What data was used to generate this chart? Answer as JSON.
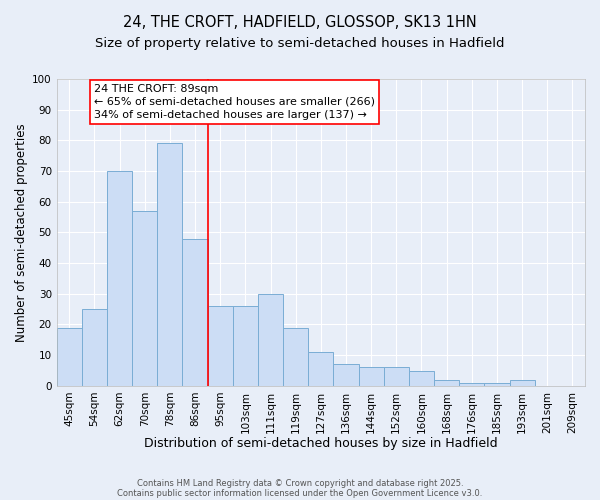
{
  "title1": "24, THE CROFT, HADFIELD, GLOSSOP, SK13 1HN",
  "title2": "Size of property relative to semi-detached houses in Hadfield",
  "xlabel": "Distribution of semi-detached houses by size in Hadfield",
  "ylabel": "Number of semi-detached properties",
  "categories": [
    "45sqm",
    "54sqm",
    "62sqm",
    "70sqm",
    "78sqm",
    "86sqm",
    "95sqm",
    "103sqm",
    "111sqm",
    "119sqm",
    "127sqm",
    "136sqm",
    "144sqm",
    "152sqm",
    "160sqm",
    "168sqm",
    "176sqm",
    "185sqm",
    "193sqm",
    "201sqm",
    "209sqm"
  ],
  "values": [
    19,
    25,
    70,
    57,
    79,
    48,
    26,
    26,
    30,
    19,
    11,
    7,
    6,
    6,
    5,
    2,
    1,
    1,
    2,
    0,
    0
  ],
  "bar_color": "#ccddf5",
  "bar_edge_color": "#7aadd4",
  "red_line_x": 5.5,
  "annotation_line1": "24 THE CROFT: 89sqm",
  "annotation_line2": "← 65% of semi-detached houses are smaller (266)",
  "annotation_line3": "34% of semi-detached houses are larger (137) →",
  "ylim": [
    0,
    100
  ],
  "yticks": [
    0,
    10,
    20,
    30,
    40,
    50,
    60,
    70,
    80,
    90,
    100
  ],
  "footer1": "Contains HM Land Registry data © Crown copyright and database right 2025.",
  "footer2": "Contains public sector information licensed under the Open Government Licence v3.0.",
  "background_color": "#e8eef8",
  "grid_color": "#ffffff",
  "title_fontsize": 10.5,
  "subtitle_fontsize": 9.5,
  "xlabel_fontsize": 9,
  "ylabel_fontsize": 8.5,
  "tick_fontsize": 7.5,
  "annotation_fontsize": 8,
  "footer_fontsize": 6
}
